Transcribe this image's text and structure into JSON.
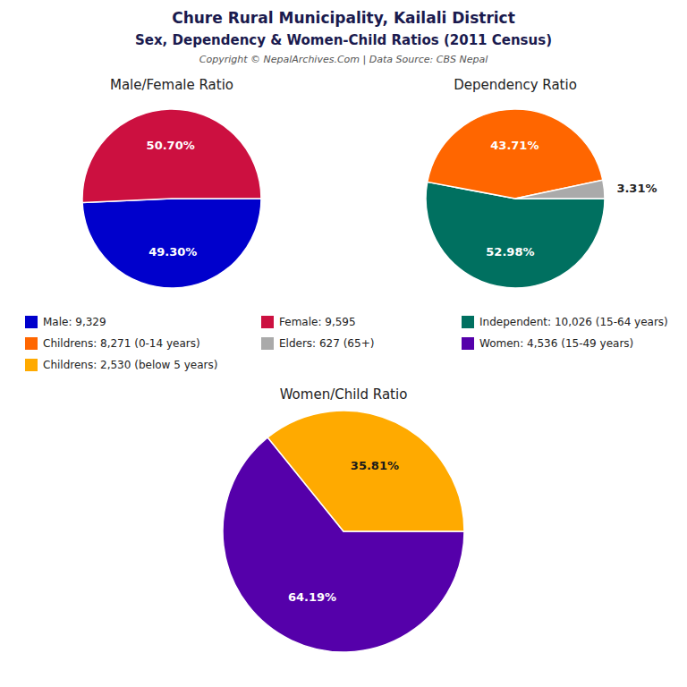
{
  "title": "Chure Rural Municipality, Kailali District",
  "subtitle": "Sex, Dependency & Women-Child Ratios (2011 Census)",
  "annotations": [
    "Copyright © NepalArchives.Com | Data Source: CBS Nepal"
  ],
  "chart_data": [
    {
      "type": "pie",
      "title": "Male/Female Ratio",
      "categories": [
        "Male: 9,329",
        "Female: 9,595"
      ],
      "values": [
        49.3,
        50.7
      ],
      "value_labels": [
        "49.30%",
        "50.70%"
      ],
      "colors": [
        "#0000cc",
        "#cc1040"
      ],
      "data_labels": true
    },
    {
      "type": "pie",
      "title": "Dependency Ratio",
      "categories": [
        "Independent: 10,026 (15-64 years)",
        "Childrens: 8,271 (0-14 years)",
        "Elders: 627 (65+)"
      ],
      "values": [
        52.98,
        43.71,
        3.31
      ],
      "value_labels": [
        "52.98%",
        "43.71%",
        "3.31%"
      ],
      "colors": [
        "#007060",
        "#ff6600",
        "#aaaaaa"
      ],
      "data_labels": true
    },
    {
      "type": "pie",
      "title": "Women/Child Ratio",
      "categories": [
        "Women: 4,536 (15-49 years)",
        "Childrens: 2,530 (below 5 years)"
      ],
      "values": [
        64.19,
        35.81
      ],
      "value_labels": [
        "64.19%",
        "35.81%"
      ],
      "colors": [
        "#5500aa",
        "#ffaa00"
      ],
      "data_labels": true
    }
  ]
}
